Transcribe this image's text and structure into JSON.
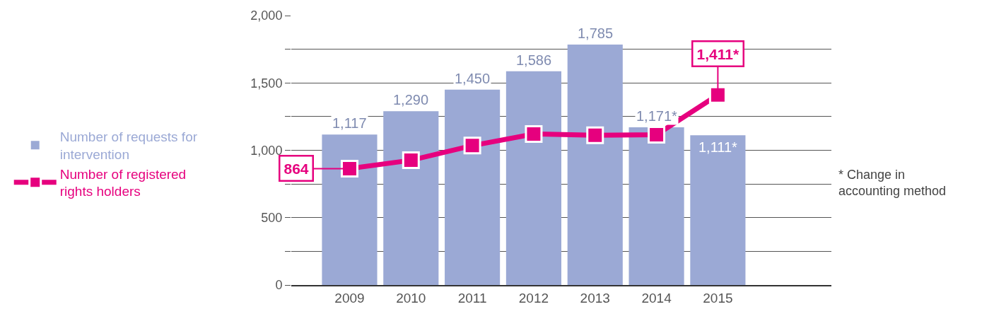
{
  "chart_data": {
    "type": "bar",
    "categories": [
      "2009",
      "2010",
      "2011",
      "2012",
      "2013",
      "2014",
      "2015"
    ],
    "series": [
      {
        "name": "Number of requests for intervention",
        "color": "#9ba9d5",
        "values": [
          1117,
          1290,
          1450,
          1586,
          1785,
          1171,
          1111
        ],
        "value_labels": [
          "1,117",
          "1,290",
          "1,450",
          "1,586",
          "1,785",
          "1,171*",
          "1,111*"
        ]
      },
      {
        "name": "Number of registered rights holders",
        "type": "line",
        "color": "#e6007e",
        "marker": "square",
        "line_style": "solid",
        "values": [
          864,
          926,
          1035,
          1121,
          1111,
          1116,
          1411
        ],
        "value_labels": [
          "864",
          null,
          null,
          null,
          null,
          null,
          "1,411*"
        ]
      }
    ],
    "ylim": [
      0,
      2000
    ],
    "yticks": [
      0,
      {
        "value": 250,
        "label": null
      },
      500,
      {
        "value": 750,
        "label": null
      },
      {
        "value": 1000,
        "label": "1,000"
      },
      {
        "value": 1250,
        "label": null
      },
      {
        "value": 1500,
        "label": "1,500"
      },
      {
        "value": 1750,
        "label": null
      },
      {
        "value": 2000,
        "label": "2,000"
      }
    ],
    "grid": "y",
    "legend": "left",
    "annotations": [
      "* Change in accounting method"
    ]
  }
}
